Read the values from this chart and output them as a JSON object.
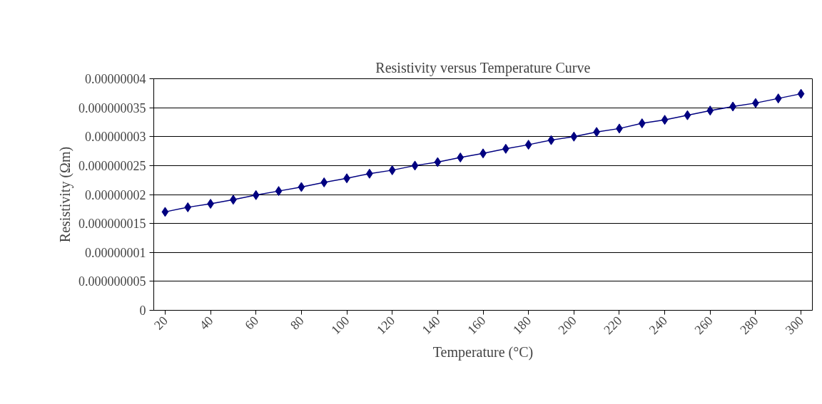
{
  "chart_data": {
    "type": "line",
    "title": "Resistivity versus Temperature Curve",
    "xlabel": "Temperature (°C)",
    "ylabel": "Resistivity (Ωm)",
    "categories": [
      "20",
      null,
      "40",
      null,
      "60",
      null,
      "80",
      null,
      "100",
      null,
      "120",
      null,
      "140",
      null,
      "160",
      null,
      "180",
      null,
      "200",
      null,
      "220",
      null,
      "240",
      null,
      "260",
      null,
      "280",
      null,
      "300"
    ],
    "series": [
      {
        "color": "#000080",
        "values": [
          1.7e-08,
          1.78e-08,
          1.84e-08,
          1.91e-08,
          1.99e-08,
          2.06e-08,
          2.13e-08,
          2.21e-08,
          2.28e-08,
          2.36e-08,
          2.42e-08,
          2.5e-08,
          2.56e-08,
          2.64e-08,
          2.71e-08,
          2.79e-08,
          2.86e-08,
          2.94e-08,
          3e-08,
          3.08e-08,
          3.14e-08,
          3.23e-08,
          3.29e-08,
          3.37e-08,
          3.45e-08,
          3.52e-08,
          3.58e-08,
          3.66e-08,
          3.74e-08
        ]
      }
    ],
    "ylim": [
      0,
      4e-08
    ],
    "yticks": [
      {
        "value": 0,
        "label": "0"
      },
      {
        "value": 5e-09,
        "label": "0.000000005"
      },
      {
        "value": 1e-08,
        "label": "0.00000001"
      },
      {
        "value": 1.5e-08,
        "label": "0.000000015"
      },
      {
        "value": 2e-08,
        "label": "0.00000002"
      },
      {
        "value": 2.5e-08,
        "label": "0.000000025"
      },
      {
        "value": 3e-08,
        "label": "0.00000003"
      },
      {
        "value": 3.5e-08,
        "label": "0.000000035"
      },
      {
        "value": 4e-08,
        "label": "0.00000004"
      }
    ],
    "grid": "y",
    "marker": "diamond",
    "line_style": "solid"
  }
}
